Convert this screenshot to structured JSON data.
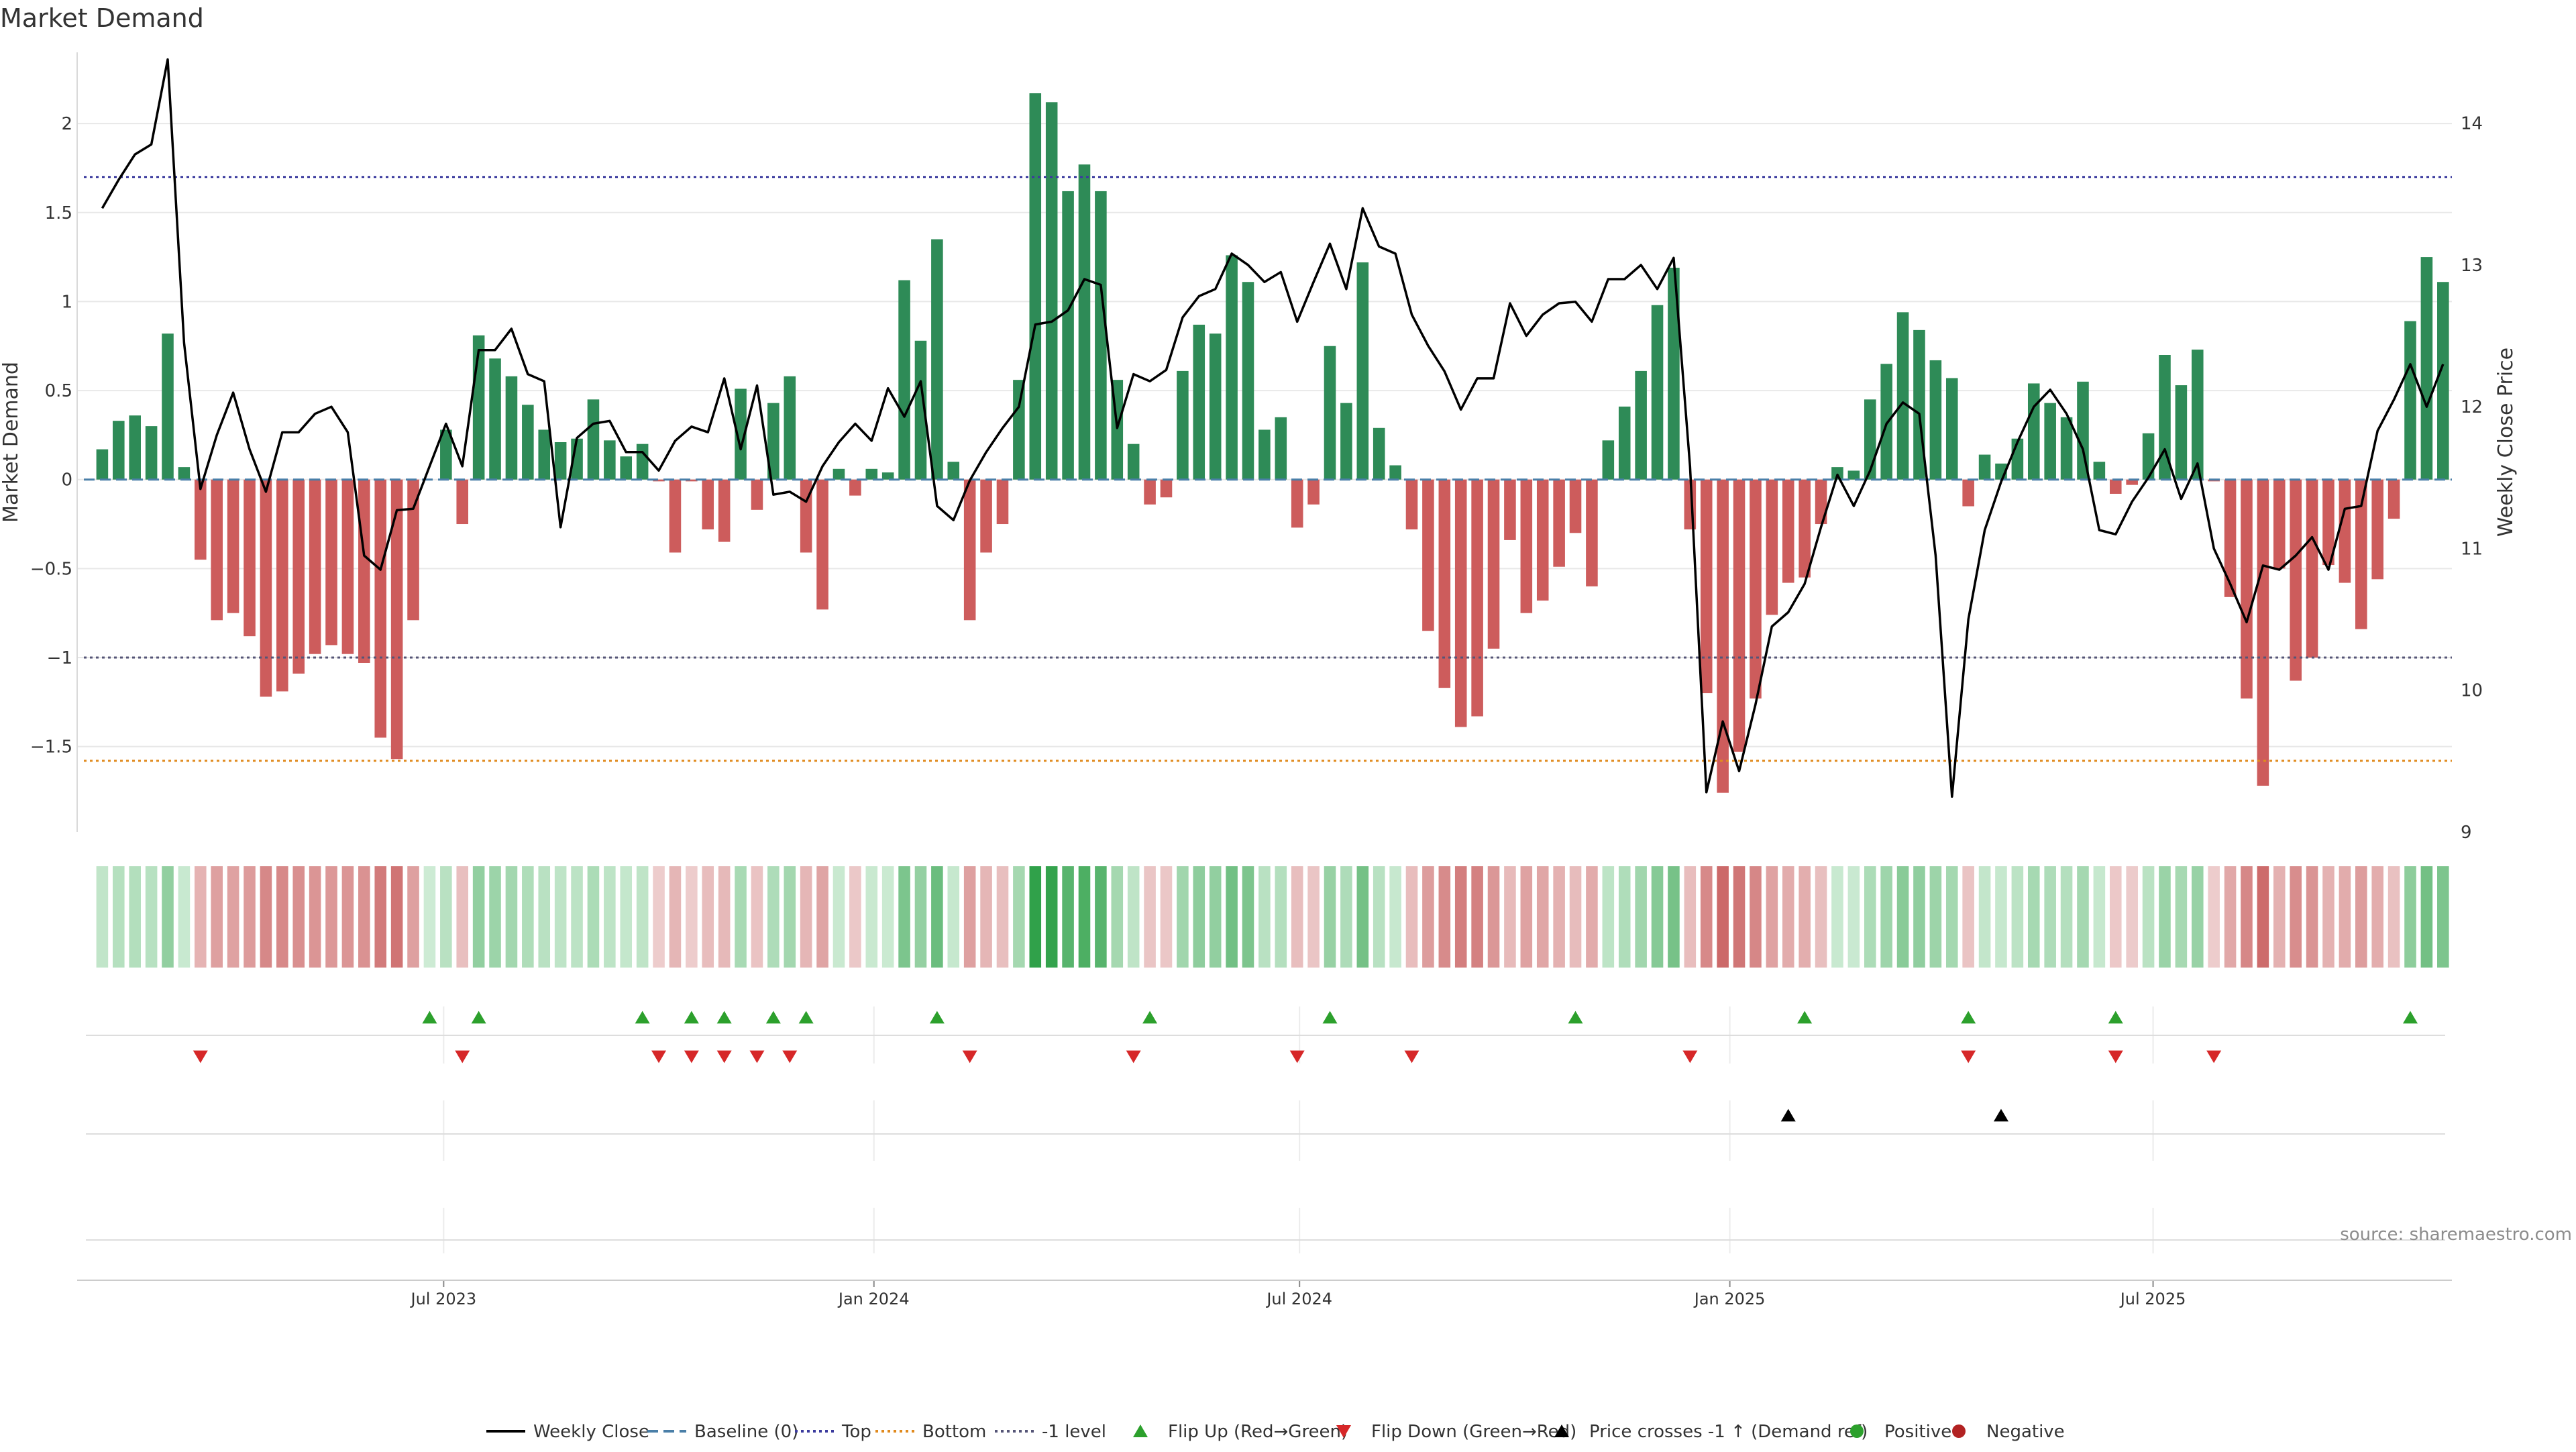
{
  "chart_data": {
    "type": "bar",
    "title": "Market Demand",
    "ylabel": "Market Demand",
    "y2label": "Weekly Close Price",
    "source": "source: sharemaestro.com",
    "ylim": [
      -1.98,
      2.4
    ],
    "y2lim": [
      9,
      14.5
    ],
    "yticks": [
      2,
      1.5,
      1,
      0.5,
      0,
      -0.5,
      -1,
      -1.5
    ],
    "ytick_labels": [
      "2",
      "1.5",
      "1",
      "0.5",
      "0",
      "−0.5",
      "−1",
      "−1.5"
    ],
    "y2ticks": [
      14,
      13,
      12,
      11,
      10,
      9
    ],
    "x_start": "2023-01-29",
    "x_end": "2025-10-19",
    "xticks": [
      {
        "date": "2023-07-01",
        "label": "Jul 2023"
      },
      {
        "date": "2024-01-01",
        "label": "Jan 2024"
      },
      {
        "date": "2024-07-01",
        "label": "Jul 2024"
      },
      {
        "date": "2025-01-01",
        "label": "Jan 2025"
      },
      {
        "date": "2025-07-01",
        "label": "Jul 2025"
      }
    ],
    "reference_lines": [
      {
        "name": "Baseline (0)",
        "value": 0,
        "color": "#4a7fa8",
        "style": "dashed"
      },
      {
        "name": "Top",
        "value": 1.7,
        "color": "#3b3b9e",
        "style": "dotted"
      },
      {
        "name": "Bottom",
        "value": -1.58,
        "color": "#e08a1e",
        "style": "dotted"
      },
      {
        "name": "-1 level",
        "value": -1.0,
        "color": "#555577",
        "style": "dotted"
      }
    ],
    "colors": {
      "positive": "#2e8b57",
      "negative": "#cd5c5c",
      "price": "#000000",
      "flip_up": "#2ca02c",
      "flip_down": "#d62728",
      "cross": "#000000",
      "positive_dot": "#2ca02c",
      "negative_dot": "#b22222"
    },
    "weeks": [
      {
        "date": "2023-02-05",
        "demand": 0.17,
        "close": 13.4
      },
      {
        "date": "2023-02-12",
        "demand": 0.33,
        "close": 13.6
      },
      {
        "date": "2023-02-19",
        "demand": 0.36,
        "close": 13.78
      },
      {
        "date": "2023-02-26",
        "demand": 0.3,
        "close": 13.85
      },
      {
        "date": "2023-03-05",
        "demand": 0.82,
        "close": 14.45
      },
      {
        "date": "2023-03-12",
        "demand": 0.07,
        "close": 12.45
      },
      {
        "date": "2023-03-19",
        "demand": -0.45,
        "close": 11.42
      },
      {
        "date": "2023-03-26",
        "demand": -0.79,
        "close": 11.8
      },
      {
        "date": "2023-04-02",
        "demand": -0.75,
        "close": 12.1
      },
      {
        "date": "2023-04-09",
        "demand": -0.88,
        "close": 11.7
      },
      {
        "date": "2023-04-16",
        "demand": -1.22,
        "close": 11.4
      },
      {
        "date": "2023-04-23",
        "demand": -1.19,
        "close": 11.82
      },
      {
        "date": "2023-04-30",
        "demand": -1.09,
        "close": 11.82
      },
      {
        "date": "2023-05-07",
        "demand": -0.98,
        "close": 11.95
      },
      {
        "date": "2023-05-14",
        "demand": -0.93,
        "close": 12.0
      },
      {
        "date": "2023-05-21",
        "demand": -0.98,
        "close": 11.82
      },
      {
        "date": "2023-05-28",
        "demand": -1.03,
        "close": 10.95
      },
      {
        "date": "2023-06-04",
        "demand": -1.45,
        "close": 10.85
      },
      {
        "date": "2023-06-11",
        "demand": -1.57,
        "close": 11.27
      },
      {
        "date": "2023-06-18",
        "demand": -0.79,
        "close": 11.28
      },
      {
        "date": "2023-06-25",
        "demand": 0.0,
        "close": 11.58
      },
      {
        "date": "2023-07-02",
        "demand": 0.28,
        "close": 11.88
      },
      {
        "date": "2023-07-09",
        "demand": -0.25,
        "close": 11.58
      },
      {
        "date": "2023-07-16",
        "demand": 0.81,
        "close": 12.4
      },
      {
        "date": "2023-07-23",
        "demand": 0.68,
        "close": 12.4
      },
      {
        "date": "2023-07-30",
        "demand": 0.58,
        "close": 12.55
      },
      {
        "date": "2023-08-06",
        "demand": 0.42,
        "close": 12.23
      },
      {
        "date": "2023-08-13",
        "demand": 0.28,
        "close": 12.18
      },
      {
        "date": "2023-08-20",
        "demand": 0.21,
        "close": 11.15
      },
      {
        "date": "2023-08-27",
        "demand": 0.23,
        "close": 11.78
      },
      {
        "date": "2023-09-03",
        "demand": 0.45,
        "close": 11.88
      },
      {
        "date": "2023-09-10",
        "demand": 0.22,
        "close": 11.9
      },
      {
        "date": "2023-09-17",
        "demand": 0.13,
        "close": 11.68
      },
      {
        "date": "2023-09-24",
        "demand": 0.2,
        "close": 11.68
      },
      {
        "date": "2023-10-01",
        "demand": -0.01,
        "close": 11.55
      },
      {
        "date": "2023-10-08",
        "demand": -0.41,
        "close": 11.76
      },
      {
        "date": "2023-10-15",
        "demand": -0.01,
        "close": 11.86
      },
      {
        "date": "2023-10-22",
        "demand": -0.28,
        "close": 11.82
      },
      {
        "date": "2023-10-29",
        "demand": -0.35,
        "close": 12.2
      },
      {
        "date": "2023-11-05",
        "demand": 0.51,
        "close": 11.7
      },
      {
        "date": "2023-11-12",
        "demand": -0.17,
        "close": 12.15
      },
      {
        "date": "2023-11-19",
        "demand": 0.43,
        "close": 11.38
      },
      {
        "date": "2023-11-26",
        "demand": 0.58,
        "close": 11.4
      },
      {
        "date": "2023-12-03",
        "demand": -0.41,
        "close": 11.33
      },
      {
        "date": "2023-12-10",
        "demand": -0.73,
        "close": 11.58
      },
      {
        "date": "2023-12-17",
        "demand": 0.06,
        "close": 11.75
      },
      {
        "date": "2023-12-24",
        "demand": -0.09,
        "close": 11.88
      },
      {
        "date": "2023-12-31",
        "demand": 0.06,
        "close": 11.76
      },
      {
        "date": "2024-01-07",
        "demand": 0.04,
        "close": 12.13
      },
      {
        "date": "2024-01-14",
        "demand": 1.12,
        "close": 11.93
      },
      {
        "date": "2024-01-21",
        "demand": 0.78,
        "close": 12.18
      },
      {
        "date": "2024-01-28",
        "demand": 1.35,
        "close": 11.3
      },
      {
        "date": "2024-02-04",
        "demand": 0.1,
        "close": 11.2
      },
      {
        "date": "2024-02-11",
        "demand": -0.79,
        "close": 11.48
      },
      {
        "date": "2024-02-18",
        "demand": -0.41,
        "close": 11.68
      },
      {
        "date": "2024-02-25",
        "demand": -0.25,
        "close": 11.85
      },
      {
        "date": "2024-03-03",
        "demand": 0.56,
        "close": 12.0
      },
      {
        "date": "2024-03-10",
        "demand": 2.17,
        "close": 12.58
      },
      {
        "date": "2024-03-17",
        "demand": 2.12,
        "close": 12.6
      },
      {
        "date": "2024-03-24",
        "demand": 1.62,
        "close": 12.68
      },
      {
        "date": "2024-03-31",
        "demand": 1.77,
        "close": 12.9
      },
      {
        "date": "2024-04-07",
        "demand": 1.62,
        "close": 12.86
      },
      {
        "date": "2024-04-14",
        "demand": 0.56,
        "close": 11.85
      },
      {
        "date": "2024-04-21",
        "demand": 0.2,
        "close": 12.23
      },
      {
        "date": "2024-04-28",
        "demand": -0.14,
        "close": 12.18
      },
      {
        "date": "2024-05-05",
        "demand": -0.1,
        "close": 12.26
      },
      {
        "date": "2024-05-12",
        "demand": 0.61,
        "close": 12.63
      },
      {
        "date": "2024-05-19",
        "demand": 0.87,
        "close": 12.78
      },
      {
        "date": "2024-05-26",
        "demand": 0.82,
        "close": 12.83
      },
      {
        "date": "2024-06-02",
        "demand": 1.26,
        "close": 13.08
      },
      {
        "date": "2024-06-09",
        "demand": 1.11,
        "close": 13.0
      },
      {
        "date": "2024-06-16",
        "demand": 0.28,
        "close": 12.88
      },
      {
        "date": "2024-06-23",
        "demand": 0.35,
        "close": 12.95
      },
      {
        "date": "2024-06-30",
        "demand": -0.27,
        "close": 12.6
      },
      {
        "date": "2024-07-07",
        "demand": -0.14,
        "close": 12.88
      },
      {
        "date": "2024-07-14",
        "demand": 0.75,
        "close": 13.15
      },
      {
        "date": "2024-07-21",
        "demand": 0.43,
        "close": 12.83
      },
      {
        "date": "2024-07-28",
        "demand": 1.22,
        "close": 13.4
      },
      {
        "date": "2024-08-04",
        "demand": 0.29,
        "close": 13.13
      },
      {
        "date": "2024-08-11",
        "demand": 0.08,
        "close": 13.08
      },
      {
        "date": "2024-08-18",
        "demand": -0.28,
        "close": 12.65
      },
      {
        "date": "2024-08-25",
        "demand": -0.85,
        "close": 12.43
      },
      {
        "date": "2024-09-01",
        "demand": -1.17,
        "close": 12.25
      },
      {
        "date": "2024-09-08",
        "demand": -1.39,
        "close": 11.98
      },
      {
        "date": "2024-09-15",
        "demand": -1.33,
        "close": 12.2
      },
      {
        "date": "2024-09-22",
        "demand": -0.95,
        "close": 12.2
      },
      {
        "date": "2024-09-29",
        "demand": -0.34,
        "close": 12.73
      },
      {
        "date": "2024-10-06",
        "demand": -0.75,
        "close": 12.5
      },
      {
        "date": "2024-10-13",
        "demand": -0.68,
        "close": 12.65
      },
      {
        "date": "2024-10-20",
        "demand": -0.49,
        "close": 12.73
      },
      {
        "date": "2024-10-27",
        "demand": -0.3,
        "close": 12.74
      },
      {
        "date": "2024-11-03",
        "demand": -0.6,
        "close": 12.6
      },
      {
        "date": "2024-11-10",
        "demand": 0.22,
        "close": 12.9
      },
      {
        "date": "2024-11-17",
        "demand": 0.41,
        "close": 12.9
      },
      {
        "date": "2024-11-24",
        "demand": 0.61,
        "close": 13.0
      },
      {
        "date": "2024-12-01",
        "demand": 0.98,
        "close": 12.83
      },
      {
        "date": "2024-12-08",
        "demand": 1.19,
        "close": 13.05
      },
      {
        "date": "2024-12-15",
        "demand": -0.28,
        "close": 11.58
      },
      {
        "date": "2024-12-22",
        "demand": -1.2,
        "close": 9.28
      },
      {
        "date": "2024-12-29",
        "demand": -1.76,
        "close": 9.78
      },
      {
        "date": "2025-01-05",
        "demand": -1.53,
        "close": 9.43
      },
      {
        "date": "2025-01-12",
        "demand": -1.23,
        "close": 9.9
      },
      {
        "date": "2025-01-19",
        "demand": -0.76,
        "close": 10.45
      },
      {
        "date": "2025-01-26",
        "demand": -0.58,
        "close": 10.55
      },
      {
        "date": "2025-02-02",
        "demand": -0.55,
        "close": 10.75
      },
      {
        "date": "2025-02-09",
        "demand": -0.25,
        "close": 11.15
      },
      {
        "date": "2025-02-16",
        "demand": 0.07,
        "close": 11.52
      },
      {
        "date": "2025-02-23",
        "demand": 0.05,
        "close": 11.3
      },
      {
        "date": "2025-03-02",
        "demand": 0.45,
        "close": 11.55
      },
      {
        "date": "2025-03-09",
        "demand": 0.65,
        "close": 11.88
      },
      {
        "date": "2025-03-16",
        "demand": 0.94,
        "close": 12.03
      },
      {
        "date": "2025-03-23",
        "demand": 0.84,
        "close": 11.95
      },
      {
        "date": "2025-03-30",
        "demand": 0.67,
        "close": 10.95
      },
      {
        "date": "2025-04-06",
        "demand": 0.57,
        "close": 9.25
      },
      {
        "date": "2025-04-13",
        "demand": -0.15,
        "close": 10.5
      },
      {
        "date": "2025-04-20",
        "demand": 0.14,
        "close": 11.13
      },
      {
        "date": "2025-04-27",
        "demand": 0.09,
        "close": 11.47
      },
      {
        "date": "2025-05-04",
        "demand": 0.23,
        "close": 11.75
      },
      {
        "date": "2025-05-11",
        "demand": 0.54,
        "close": 12.0
      },
      {
        "date": "2025-05-18",
        "demand": 0.43,
        "close": 12.12
      },
      {
        "date": "2025-05-25",
        "demand": 0.35,
        "close": 11.95
      },
      {
        "date": "2025-06-01",
        "demand": 0.55,
        "close": 11.7
      },
      {
        "date": "2025-06-08",
        "demand": 0.1,
        "close": 11.13
      },
      {
        "date": "2025-06-15",
        "demand": -0.08,
        "close": 11.1
      },
      {
        "date": "2025-06-22",
        "demand": -0.03,
        "close": 11.33
      },
      {
        "date": "2025-06-29",
        "demand": 0.26,
        "close": 11.5
      },
      {
        "date": "2025-07-06",
        "demand": 0.7,
        "close": 11.7
      },
      {
        "date": "2025-07-13",
        "demand": 0.53,
        "close": 11.35
      },
      {
        "date": "2025-07-20",
        "demand": 0.73,
        "close": 11.6
      },
      {
        "date": "2025-07-27",
        "demand": -0.01,
        "close": 11.0
      },
      {
        "date": "2025-08-03",
        "demand": -0.66,
        "close": 10.75
      },
      {
        "date": "2025-08-10",
        "demand": -1.23,
        "close": 10.48
      },
      {
        "date": "2025-08-17",
        "demand": -1.72,
        "close": 10.88
      },
      {
        "date": "2025-08-24",
        "demand": -0.5,
        "close": 10.85
      },
      {
        "date": "2025-08-31",
        "demand": -1.13,
        "close": 10.95
      },
      {
        "date": "2025-09-07",
        "demand": -1.0,
        "close": 11.08
      },
      {
        "date": "2025-09-14",
        "demand": -0.48,
        "close": 10.85
      },
      {
        "date": "2025-09-21",
        "demand": -0.58,
        "close": 11.28
      },
      {
        "date": "2025-09-28",
        "demand": -0.84,
        "close": 11.3
      },
      {
        "date": "2025-10-05",
        "demand": -0.56,
        "close": 11.83
      },
      {
        "date": "2025-10-12",
        "demand": -0.22,
        "close": 12.05
      },
      {
        "date": "2025-10-19",
        "demand": 0.89,
        "close": 12.3
      },
      {
        "date": "2025-10-26",
        "demand": 1.25,
        "close": 12.0
      },
      {
        "date": "2025-11-02",
        "demand": 1.11,
        "close": 12.3
      }
    ],
    "flip_up": [
      "2023-06-25",
      "2023-07-16",
      "2023-09-24",
      "2023-10-15",
      "2023-10-29",
      "2023-11-19",
      "2023-12-03",
      "2024-01-28",
      "2024-04-28",
      "2024-07-14",
      "2024-10-27",
      "2025-02-02",
      "2025-04-13",
      "2025-06-15",
      "2025-10-19"
    ],
    "flip_down": [
      "2023-03-19",
      "2023-07-09",
      "2023-10-01",
      "2023-10-15",
      "2023-10-29",
      "2023-11-12",
      "2023-11-26",
      "2024-02-11",
      "2024-04-21",
      "2024-06-30",
      "2024-08-18",
      "2024-12-15",
      "2025-04-13",
      "2025-06-15",
      "2025-07-27"
    ],
    "price_crosses": [
      "2025-01-26",
      "2025-04-27"
    ],
    "legend": [
      {
        "label": "Weekly Close",
        "kind": "line",
        "color": "#000000"
      },
      {
        "label": "Baseline (0)",
        "kind": "dash",
        "color": "#4a7fa8"
      },
      {
        "label": "Top",
        "kind": "dot",
        "color": "#3b3b9e"
      },
      {
        "label": "Bottom",
        "kind": "dot",
        "color": "#e08a1e"
      },
      {
        "label": "-1 level",
        "kind": "dot",
        "color": "#555577"
      },
      {
        "label": "Flip Up (Red→Green)",
        "kind": "tri-up",
        "color": "#2ca02c"
      },
      {
        "label": "Flip Down (Green→Red)",
        "kind": "tri-down",
        "color": "#d62728"
      },
      {
        "label": "Price crosses -1 ↑ (Demand ref)",
        "kind": "tri-up",
        "color": "#000000"
      },
      {
        "label": "Positive",
        "kind": "circle",
        "color": "#2ca02c"
      },
      {
        "label": "Negative",
        "kind": "circle",
        "color": "#b22222"
      }
    ]
  }
}
